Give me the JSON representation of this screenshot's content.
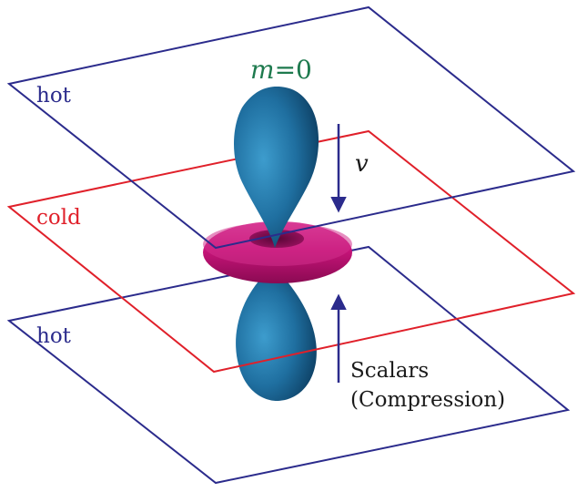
{
  "labels": {
    "hot_top": "hot",
    "cold": "cold",
    "hot_bottom": "hot",
    "mode_symbol": "m",
    "mode_value": "=0",
    "velocity": "v",
    "scalars": "Scalars",
    "compression": "(Compression)"
  },
  "colors": {
    "hot_plane": "#2b2b8c",
    "cold_plane": "#e0202a",
    "lobe_blue": "#1f6fa0",
    "torus_magenta": "#c8147a",
    "mode_label": "#1e7a4e",
    "arrow": "#2b2b8c"
  }
}
